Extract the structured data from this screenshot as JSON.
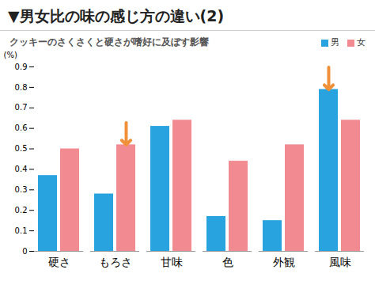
{
  "chart_data": {
    "type": "bar",
    "title": "▼男女比の味の感じ方の違い(2)",
    "subtitle": "クッキーのさくさくと硬さが嗜好に及ぼす影響",
    "y_label": "(%)",
    "categories": [
      "硬さ",
      "もろさ",
      "甘味",
      "色",
      "外観",
      "風味"
    ],
    "series": [
      {
        "name": "男",
        "color": "#29a3e0",
        "values": [
          0.37,
          0.28,
          0.61,
          0.17,
          0.15,
          0.79
        ]
      },
      {
        "name": "女",
        "color": "#f28a92",
        "values": [
          0.5,
          0.52,
          0.64,
          0.44,
          0.52,
          0.64
        ]
      }
    ],
    "ylim": [
      0,
      0.9
    ],
    "yticks": [
      0,
      0.1,
      0.2,
      0.3,
      0.4,
      0.5,
      0.6,
      0.7,
      0.8,
      0.9
    ],
    "grid": false,
    "legend": "top-right"
  }
}
